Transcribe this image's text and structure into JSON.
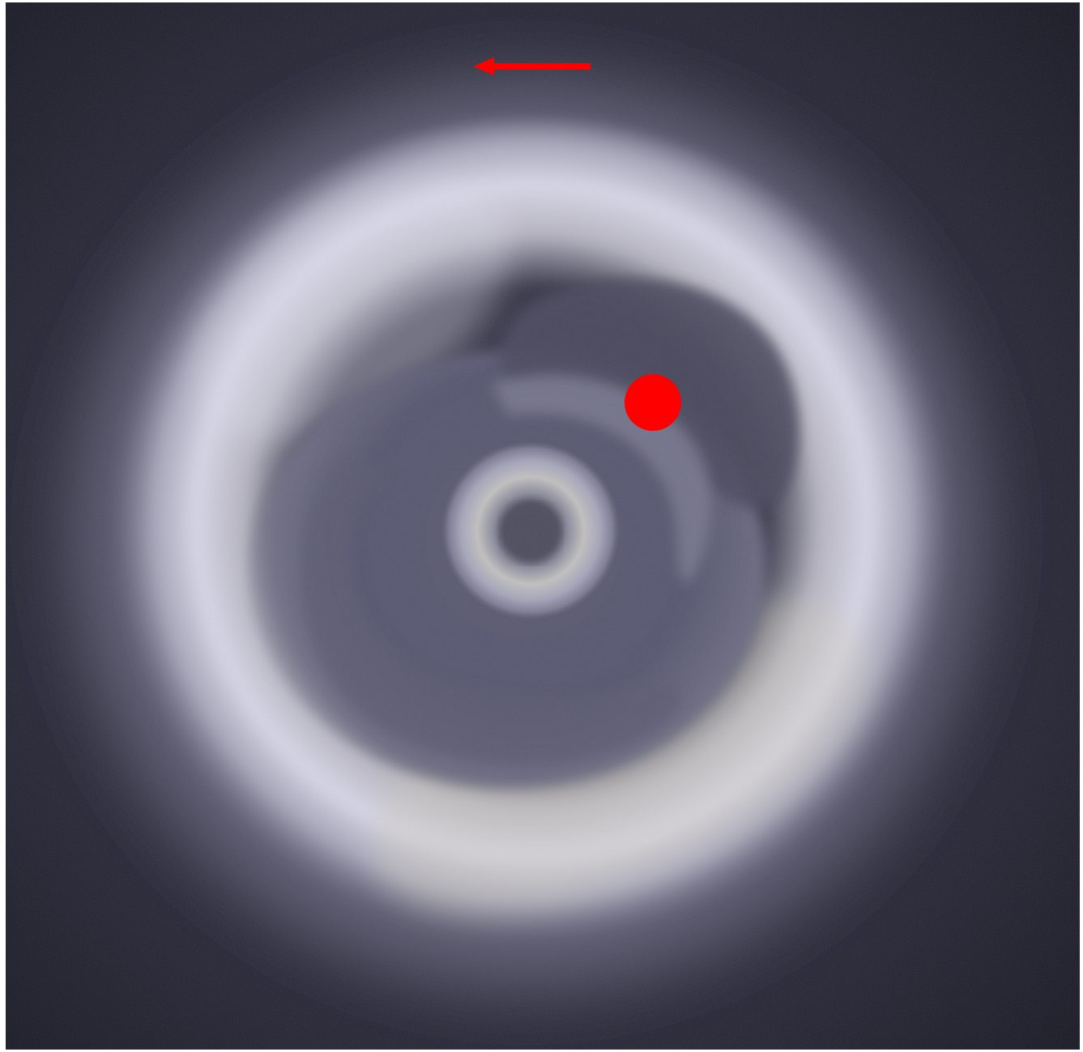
{
  "image": {
    "subject": "disk-image",
    "palette": {
      "background": "#1f1f27",
      "dark_ring": "#4b4b5e",
      "mid_ring": "#8f8fa3",
      "bright_ring": "#d8d8e4",
      "warm_tint": "#c9c6a8",
      "cool_tint": "#aab0e6"
    }
  },
  "markers": {
    "planet": {
      "shape": "filled-circle",
      "color": "#ff0000"
    },
    "direction_arrow": {
      "direction": "left",
      "color": "#ff0000"
    }
  }
}
